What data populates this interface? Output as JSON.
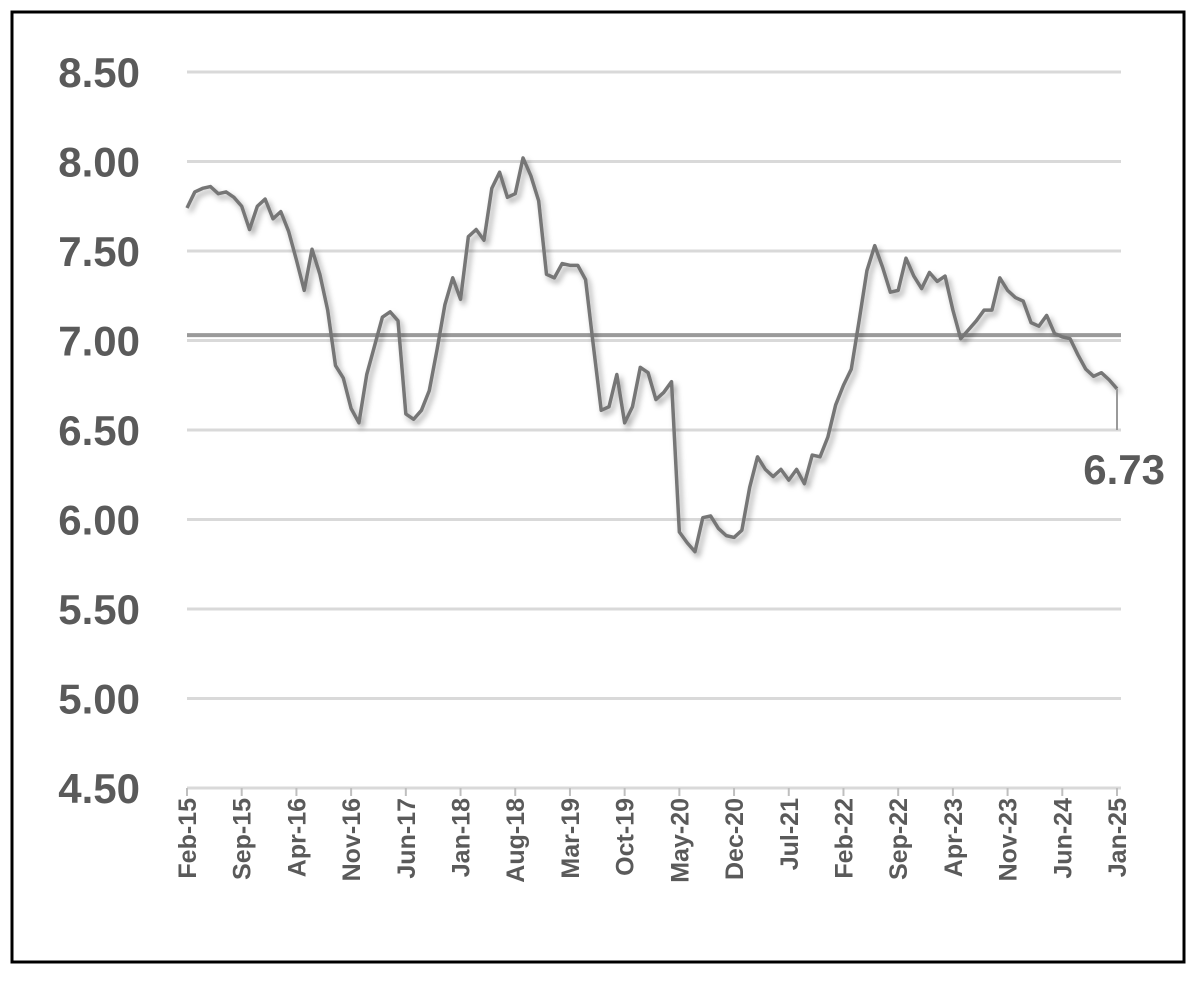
{
  "chart_data": {
    "type": "line",
    "categories": [
      "Feb-15",
      null,
      null,
      null,
      null,
      null,
      null,
      "Sep-15",
      null,
      null,
      null,
      null,
      null,
      null,
      "Apr-16",
      null,
      null,
      null,
      null,
      null,
      null,
      "Nov-16",
      null,
      null,
      null,
      null,
      null,
      null,
      "Jun-17",
      null,
      null,
      null,
      null,
      null,
      null,
      "Jan-18",
      null,
      null,
      null,
      null,
      null,
      null,
      "Aug-18",
      null,
      null,
      null,
      null,
      null,
      null,
      "Mar-19",
      null,
      null,
      null,
      null,
      null,
      null,
      "Oct-19",
      null,
      null,
      null,
      null,
      null,
      null,
      "May-20",
      null,
      null,
      null,
      null,
      null,
      null,
      "Dec-20",
      null,
      null,
      null,
      null,
      null,
      null,
      "Jul-21",
      null,
      null,
      null,
      null,
      null,
      null,
      "Feb-22",
      null,
      null,
      null,
      null,
      null,
      null,
      "Sep-22",
      null,
      null,
      null,
      null,
      null,
      null,
      "Apr-23",
      null,
      null,
      null,
      null,
      null,
      null,
      "Nov-23",
      null,
      null,
      null,
      null,
      null,
      null,
      "Jun-24",
      null,
      null,
      null,
      null,
      null,
      null,
      "Jan-25"
    ],
    "series": [
      {
        "color": "#767676",
        "values": [
          7.74,
          7.83,
          7.85,
          7.86,
          7.82,
          7.83,
          7.8,
          7.75,
          7.62,
          7.75,
          7.79,
          7.68,
          7.72,
          7.61,
          7.45,
          7.28,
          7.51,
          7.37,
          7.17,
          6.86,
          6.79,
          6.62,
          6.54,
          6.81,
          6.97,
          7.13,
          7.16,
          7.11,
          6.59,
          6.56,
          6.61,
          6.72,
          6.95,
          7.2,
          7.35,
          7.23,
          7.58,
          7.62,
          7.56,
          7.85,
          7.94,
          7.8,
          7.82,
          8.02,
          7.92,
          7.78,
          7.37,
          7.35,
          7.43,
          7.42,
          7.42,
          7.34,
          6.97,
          6.61,
          6.63,
          6.81,
          6.54,
          6.63,
          6.85,
          6.82,
          6.67,
          6.71,
          6.77,
          5.93,
          5.87,
          5.82,
          6.01,
          6.02,
          5.95,
          5.91,
          5.9,
          5.94,
          6.18,
          6.35,
          6.28,
          6.24,
          6.28,
          6.22,
          6.28,
          6.2,
          6.36,
          6.35,
          6.46,
          6.64,
          6.75,
          6.84,
          7.11,
          7.39,
          7.53,
          7.41,
          7.27,
          7.28,
          7.46,
          7.36,
          7.29,
          7.38,
          7.33,
          7.36,
          7.17,
          7.01,
          7.06,
          7.11,
          7.17,
          7.17,
          7.35,
          7.28,
          7.24,
          7.22,
          7.1,
          7.08,
          7.14,
          7.04,
          7.02,
          7.01,
          6.92,
          6.84,
          6.8,
          6.82,
          6.78,
          6.73
        ]
      }
    ],
    "reference_line": 7.03,
    "ylim": [
      4.5,
      8.5
    ],
    "yticks": [
      {
        "value": 4.5,
        "label": "4.50"
      },
      {
        "value": 5,
        "label": "5.00"
      },
      {
        "value": 5.5,
        "label": "5.50"
      },
      {
        "value": 6,
        "label": "6.00"
      },
      {
        "value": 6.5,
        "label": "6.50"
      },
      {
        "value": 7,
        "label": "7.00"
      },
      {
        "value": 7.5,
        "label": "7.50"
      },
      {
        "value": 8,
        "label": "8.00"
      },
      {
        "value": 8.5,
        "label": "8.50"
      }
    ],
    "grid": true
  }
}
